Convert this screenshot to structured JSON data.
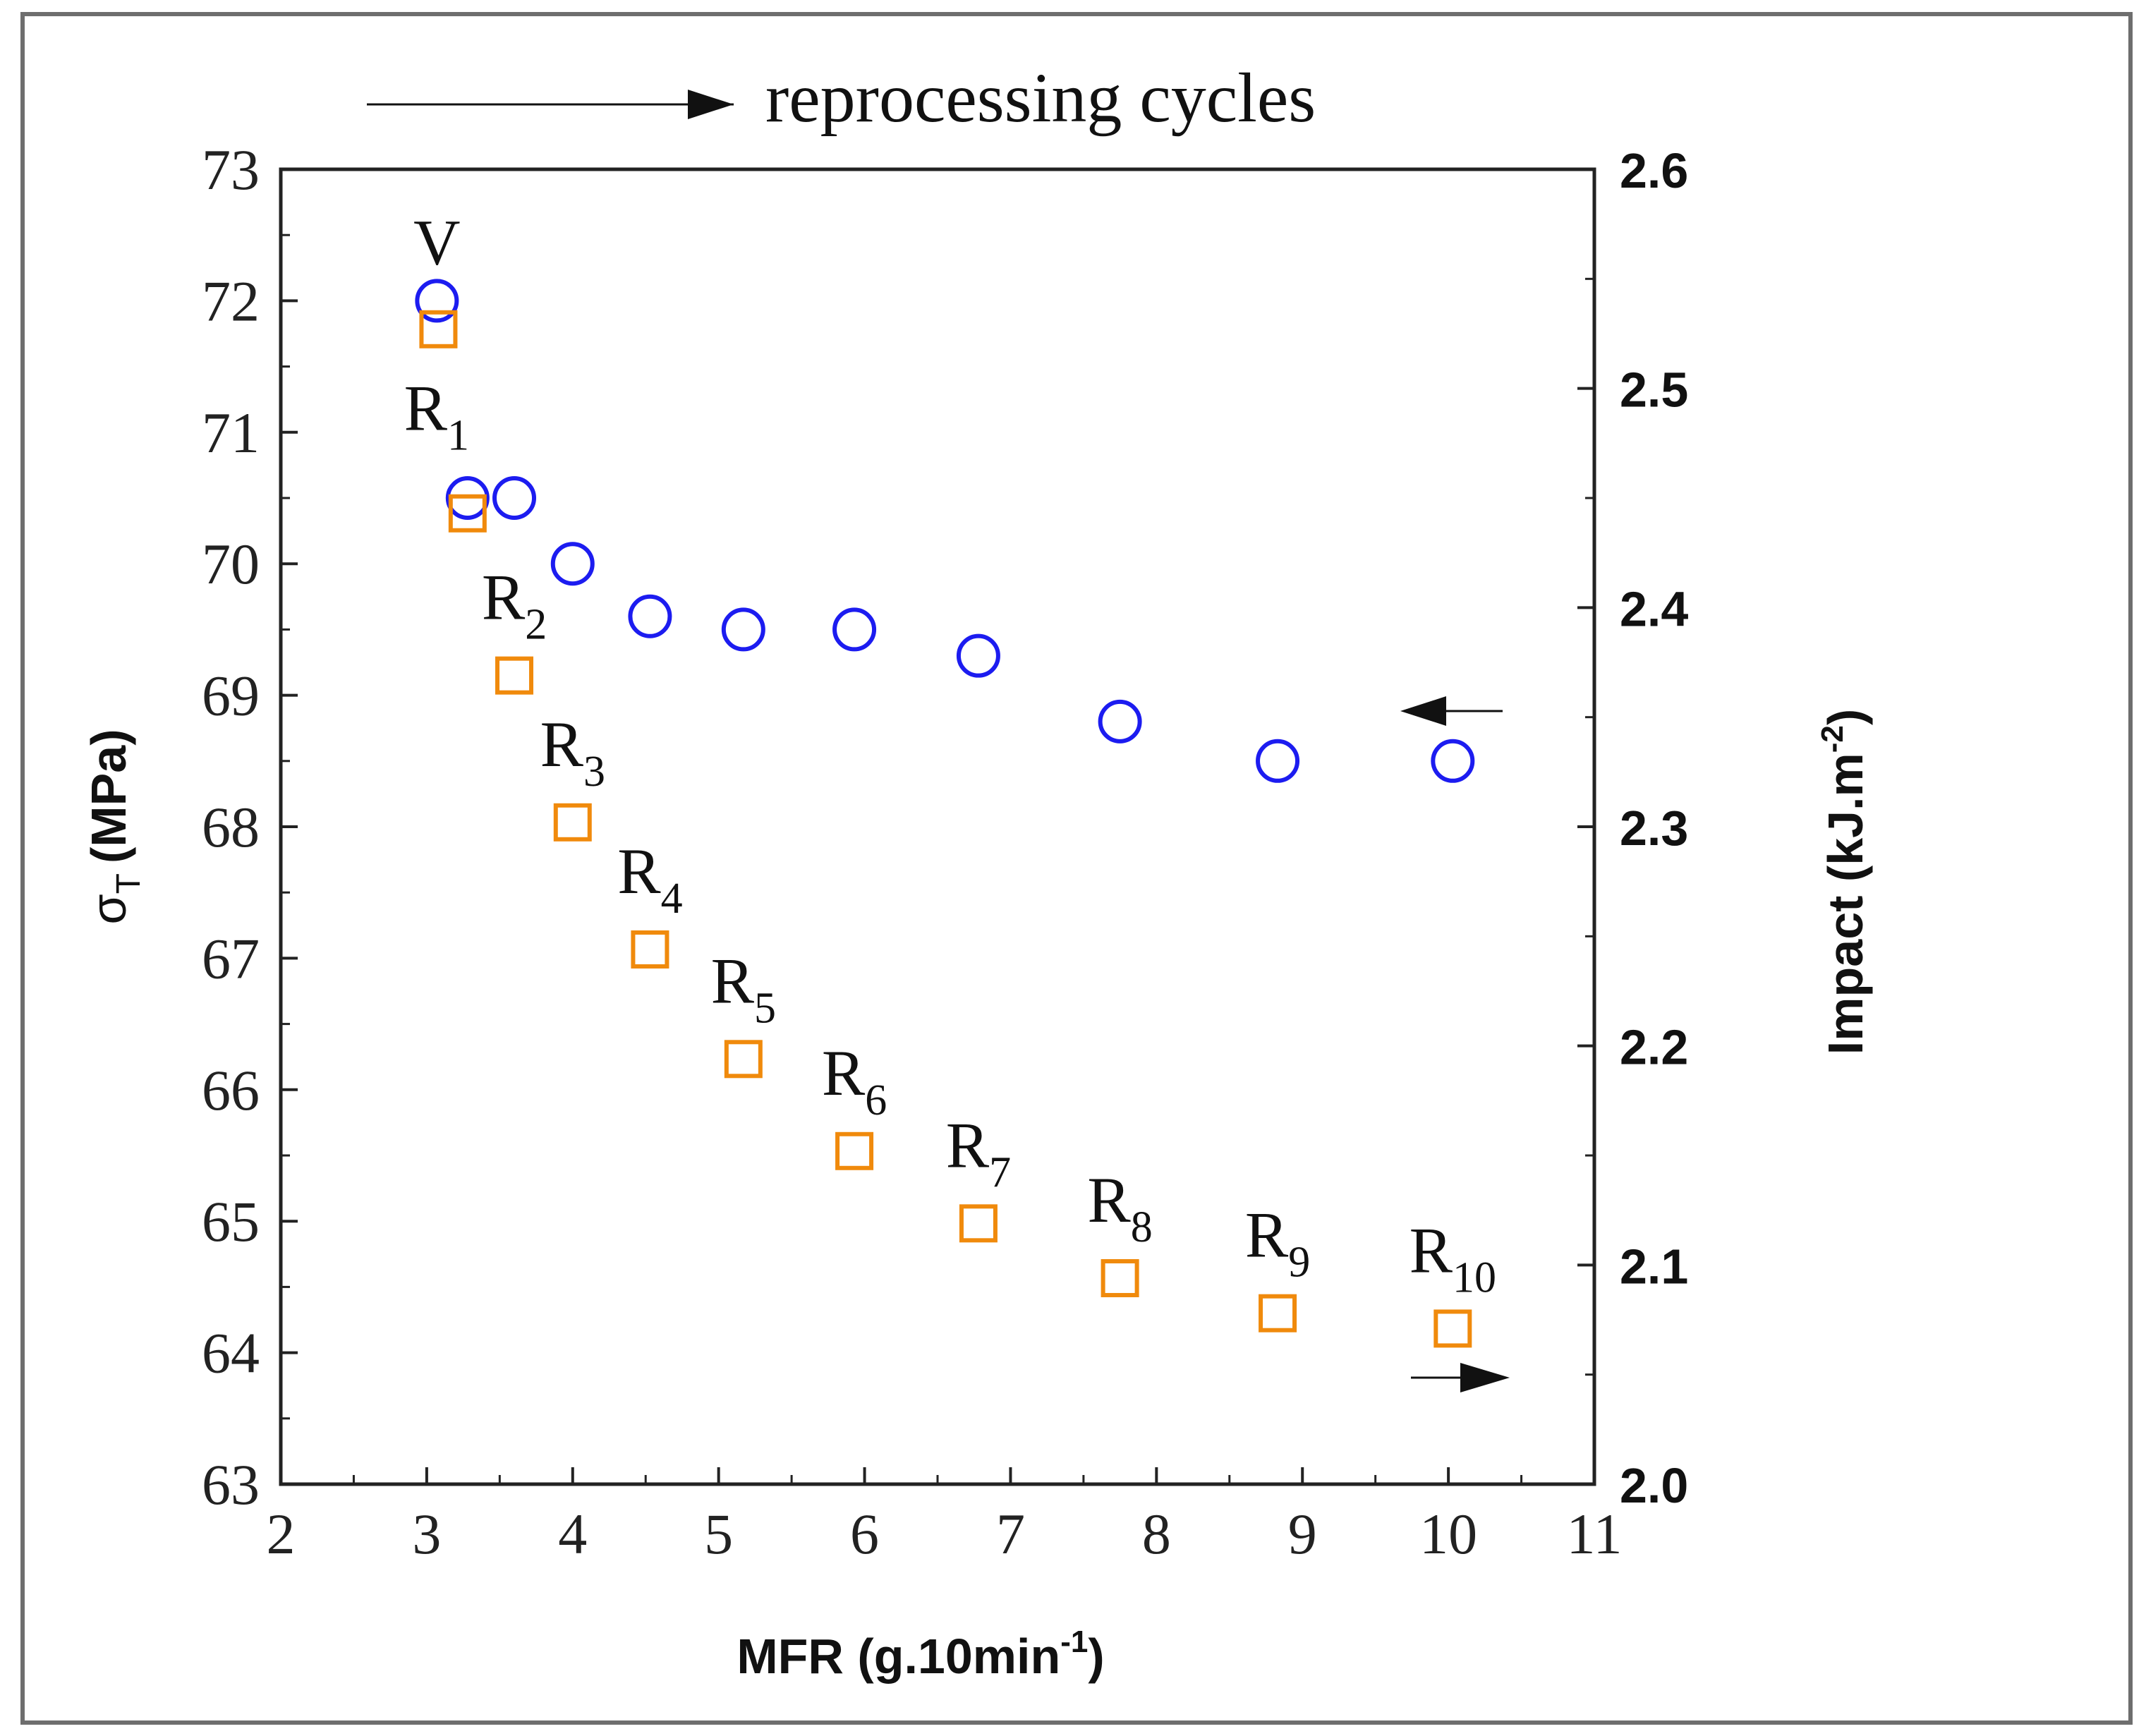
{
  "chart_data": {
    "type": "scatter",
    "title": "reprocessing cycles",
    "xlabel": "MFR (g.10min⁻¹)",
    "ylabel_left": "σT (MPa)",
    "ylabel_left_main": "σ",
    "ylabel_left_sub": "T",
    "ylabel_left_unit": "(MPa)",
    "ylabel_right": "Impact (kJ.m⁻²)",
    "ylabel_right_main": "Impact (kJ.m",
    "ylabel_right_sup": "-2",
    "ylabel_right_close": ")",
    "xlabel_main": "MFR (g.10min",
    "xlabel_sup": "-1",
    "xlabel_close": ")",
    "xlim": [
      2,
      11
    ],
    "ylim_left": [
      63,
      73
    ],
    "ylim_right": [
      2.0,
      2.6
    ],
    "x_ticks": [
      "2",
      "3",
      "4",
      "5",
      "6",
      "7",
      "8",
      "9",
      "10",
      "11"
    ],
    "y_left_ticks": [
      "63",
      "64",
      "65",
      "66",
      "67",
      "68",
      "69",
      "70",
      "71",
      "72",
      "73"
    ],
    "y_right_ticks": [
      "2.0",
      "2.1",
      "2.2",
      "2.3",
      "2.4",
      "2.5",
      "2.6"
    ],
    "grid": false,
    "series": [
      {
        "axis": "left",
        "marker": "circle",
        "color": "#1c1cf0",
        "points": [
          {
            "x": 3.07,
            "y": 72.0
          },
          {
            "x": 3.28,
            "y": 70.5
          },
          {
            "x": 3.6,
            "y": 70.5
          },
          {
            "x": 4.0,
            "y": 70.0
          },
          {
            "x": 4.53,
            "y": 69.6
          },
          {
            "x": 5.17,
            "y": 69.5
          },
          {
            "x": 5.93,
            "y": 69.5
          },
          {
            "x": 6.78,
            "y": 69.3
          },
          {
            "x": 7.75,
            "y": 68.8
          },
          {
            "x": 8.83,
            "y": 68.5
          },
          {
            "x": 10.03,
            "y": 68.5
          }
        ]
      },
      {
        "axis": "right",
        "marker": "square",
        "color": "#f08a0c",
        "points": [
          {
            "x": 3.08,
            "y": 2.527
          },
          {
            "x": 3.28,
            "y": 2.443
          },
          {
            "x": 3.6,
            "y": 2.369
          },
          {
            "x": 4.0,
            "y": 2.302
          },
          {
            "x": 4.53,
            "y": 2.244
          },
          {
            "x": 5.17,
            "y": 2.194
          },
          {
            "x": 5.93,
            "y": 2.152
          },
          {
            "x": 6.78,
            "y": 2.119
          },
          {
            "x": 7.75,
            "y": 2.094
          },
          {
            "x": 8.83,
            "y": 2.078
          },
          {
            "x": 10.03,
            "y": 2.071
          }
        ]
      }
    ],
    "point_labels": [
      {
        "main": "V",
        "sub": "",
        "x": 3.07
      },
      {
        "main": "R",
        "sub": "1",
        "x": 3.28
      },
      {
        "main": "R",
        "sub": "2",
        "x": 3.6
      },
      {
        "main": "R",
        "sub": "3",
        "x": 4.0
      },
      {
        "main": "R",
        "sub": "4",
        "x": 4.53
      },
      {
        "main": "R",
        "sub": "5",
        "x": 5.17
      },
      {
        "main": "R",
        "sub": "6",
        "x": 5.93
      },
      {
        "main": "R",
        "sub": "7",
        "x": 6.78
      },
      {
        "main": "R",
        "sub": "8",
        "x": 7.75
      },
      {
        "main": "R",
        "sub": "9",
        "x": 8.83
      },
      {
        "main": "R",
        "sub": "10",
        "x": 10.03
      }
    ],
    "annotations": {
      "left_series_arrow": "points-left",
      "right_series_arrow": "points-right",
      "top_arrow": "points-right"
    },
    "colors": {
      "axis": "#222222",
      "frame": "#6e6e6e"
    }
  }
}
